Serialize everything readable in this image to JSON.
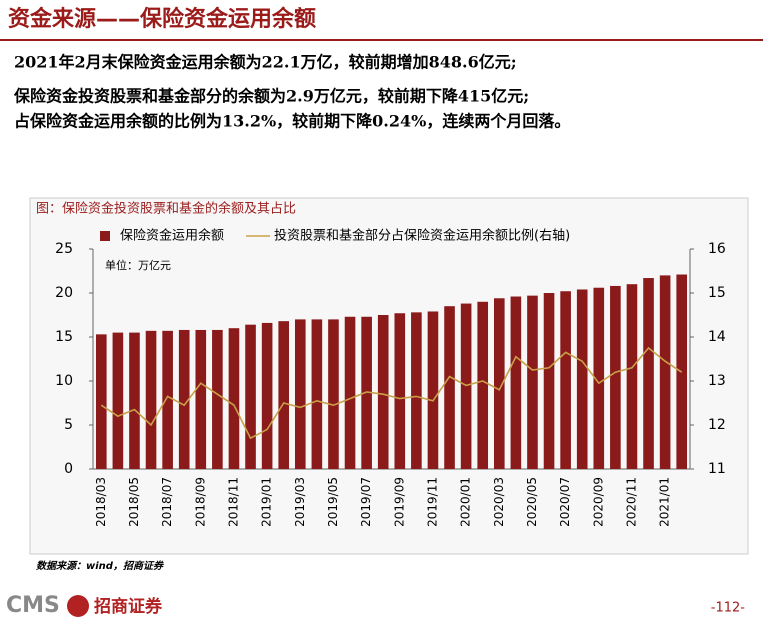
{
  "header": {
    "title": "资金来源——保险资金运用余额",
    "lines": [
      "2021年2月末保险资金运用余额为22.1万亿，较前期增加848.6亿元;",
      "保险资金投资股票和基金部分的余额为2.9万亿元，较前期下降415亿元;",
      "占保险资金运用余额的比例为13.2%，较前期下降0.24%，连续两个月回落。"
    ]
  },
  "chart_data": {
    "type": "bar_line",
    "title": "图：保险资金投资股票和基金的余额及其占比",
    "annotation": "单位：万亿元",
    "categories": [
      "2018/03",
      null,
      "2018/05",
      null,
      "2018/07",
      null,
      "2018/09",
      null,
      "2018/11",
      null,
      "2019/01",
      null,
      "2019/03",
      null,
      "2019/05",
      null,
      "2019/07",
      null,
      "2019/09",
      null,
      "2019/11",
      null,
      "2020/01",
      null,
      "2020/03",
      null,
      "2020/05",
      null,
      "2020/07",
      null,
      "2020/09",
      null,
      "2020/11",
      null,
      "2021/01",
      null
    ],
    "series": [
      {
        "name": "保险资金运用余额",
        "type": "bar",
        "color": "#8b1a1a",
        "values": [
          15.3,
          15.5,
          15.5,
          15.7,
          15.7,
          15.8,
          15.8,
          15.8,
          16.0,
          16.4,
          16.6,
          16.8,
          17.0,
          17.0,
          17.0,
          17.3,
          17.3,
          17.5,
          17.7,
          17.8,
          17.9,
          18.5,
          18.8,
          19.0,
          19.4,
          19.6,
          19.7,
          20.0,
          20.2,
          20.4,
          20.6,
          20.8,
          21.0,
          21.7,
          22.0,
          22.1
        ]
      },
      {
        "name": "投资股票和基金部分占保险资金运用余额比例(右轴)",
        "type": "line",
        "axis": "y2",
        "color": "#c9a04a",
        "values": [
          12.45,
          12.2,
          12.35,
          12.0,
          12.65,
          12.45,
          12.95,
          12.7,
          12.45,
          11.7,
          11.9,
          12.5,
          12.4,
          12.55,
          12.45,
          12.6,
          12.75,
          12.7,
          12.6,
          12.65,
          12.55,
          13.1,
          12.9,
          13.0,
          12.8,
          13.55,
          13.25,
          13.3,
          13.65,
          13.45,
          12.95,
          13.2,
          13.3,
          13.75,
          13.45,
          13.2
        ]
      }
    ],
    "ylim": [
      0,
      25
    ],
    "yticks": [
      0,
      5,
      10,
      15,
      20,
      25
    ],
    "y2lim": [
      11,
      16
    ],
    "y2ticks": [
      11,
      12,
      13,
      14,
      15,
      16
    ],
    "source": "数据来源：wind，招商证券"
  },
  "footer": {
    "logo": "CMS",
    "company": "招商证券",
    "page": "-112-"
  }
}
